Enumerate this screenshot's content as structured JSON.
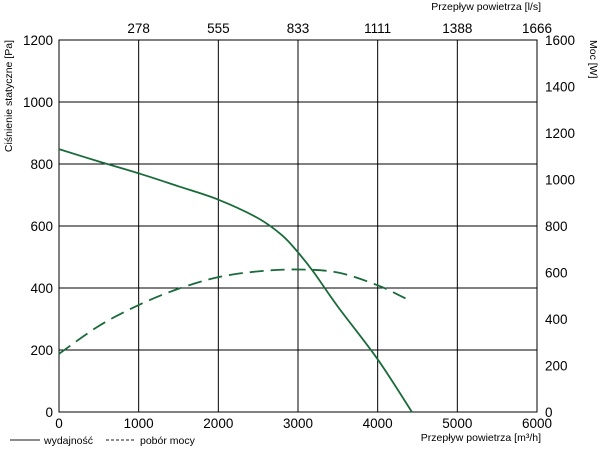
{
  "chart_data": {
    "type": "line",
    "title": "",
    "x": {
      "label": "Przepływ powietrza [m³/h]",
      "range": [
        0,
        6000
      ],
      "ticks": [
        "0",
        "1000",
        "2000",
        "3000",
        "4000",
        "5000",
        "6000"
      ]
    },
    "x_top": {
      "label": "Przepływ powietrza [l/s]",
      "ticks": [
        "278",
        "555",
        "833",
        "1111",
        "1388",
        "1666"
      ]
    },
    "y_left": {
      "label": "Ciśnienie statyczne [Pa]",
      "range": [
        0,
        1200
      ],
      "ticks": [
        "0",
        "200",
        "400",
        "600",
        "800",
        "1000",
        "1200"
      ]
    },
    "y_right": {
      "label": "Moc [W]",
      "range": [
        0,
        1600
      ],
      "ticks": [
        "0",
        "200",
        "400",
        "600",
        "800",
        "1000",
        "1200",
        "1400",
        "1600"
      ]
    },
    "grid": true,
    "legend_position": "bottom-left",
    "series": [
      {
        "name": "wydajność",
        "axis": "left",
        "style": "solid",
        "color": "#1a6b3a",
        "points": [
          [
            0,
            848
          ],
          [
            500,
            808
          ],
          [
            1000,
            770
          ],
          [
            1500,
            728
          ],
          [
            2000,
            685
          ],
          [
            2500,
            625
          ],
          [
            2800,
            570
          ],
          [
            3000,
            515
          ],
          [
            3200,
            450
          ],
          [
            3500,
            340
          ],
          [
            4000,
            170
          ],
          [
            4430,
            0
          ]
        ]
      },
      {
        "name": "pobór mocy",
        "axis": "right",
        "style": "dashed",
        "color": "#1a6b3a",
        "points": [
          [
            0,
            250
          ],
          [
            500,
            370
          ],
          [
            1000,
            460
          ],
          [
            1500,
            530
          ],
          [
            2000,
            580
          ],
          [
            2500,
            605
          ],
          [
            3000,
            613
          ],
          [
            3500,
            600
          ],
          [
            4000,
            545
          ],
          [
            4400,
            480
          ]
        ]
      }
    ]
  }
}
